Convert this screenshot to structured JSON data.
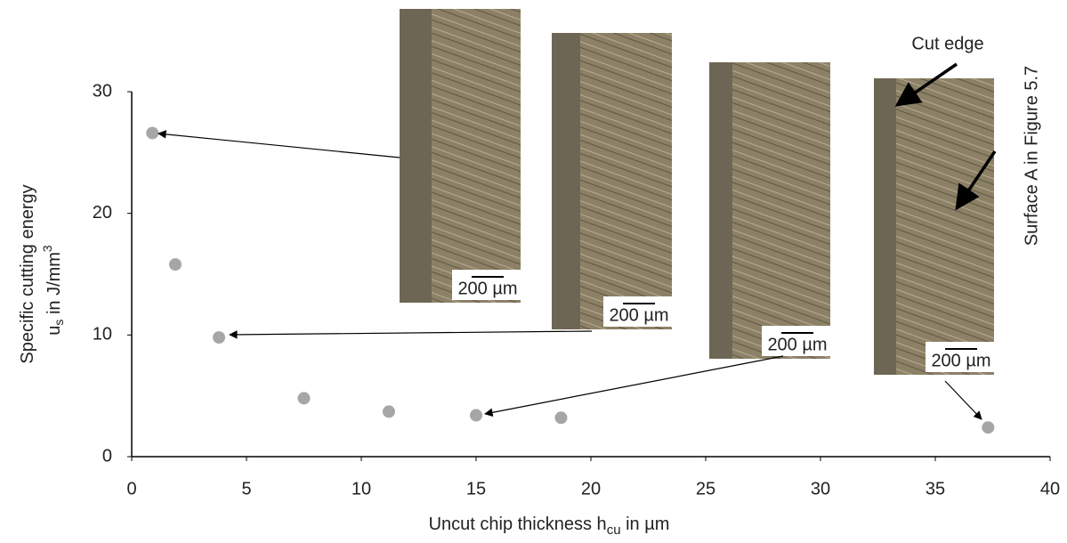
{
  "chart_data": {
    "type": "scatter",
    "x_label": [
      "Uncut chip thickness h",
      "cu",
      " in µm"
    ],
    "y_label": [
      "Specific cutting energy",
      "u",
      "s",
      " in J/mm",
      "3"
    ],
    "x": [
      0.9,
      1.9,
      3.8,
      7.5,
      11.2,
      15,
      18.7,
      37.3
    ],
    "y": [
      26.6,
      15.8,
      9.8,
      4.8,
      3.7,
      3.4,
      3.2,
      2.4
    ],
    "color": "#a6a6a6",
    "xlim": [
      0,
      40
    ],
    "xticks": [
      0,
      5,
      10,
      15,
      20,
      25,
      30,
      35,
      40
    ],
    "ylim": [
      0,
      30
    ],
    "yticks": [
      0,
      10,
      20,
      30
    ],
    "inset_labels": [
      "200 µm",
      "200 µm",
      "200 µm",
      "200 µm"
    ],
    "annotations": [
      "Cut edge",
      "Surface A in Figure 5.7"
    ]
  }
}
